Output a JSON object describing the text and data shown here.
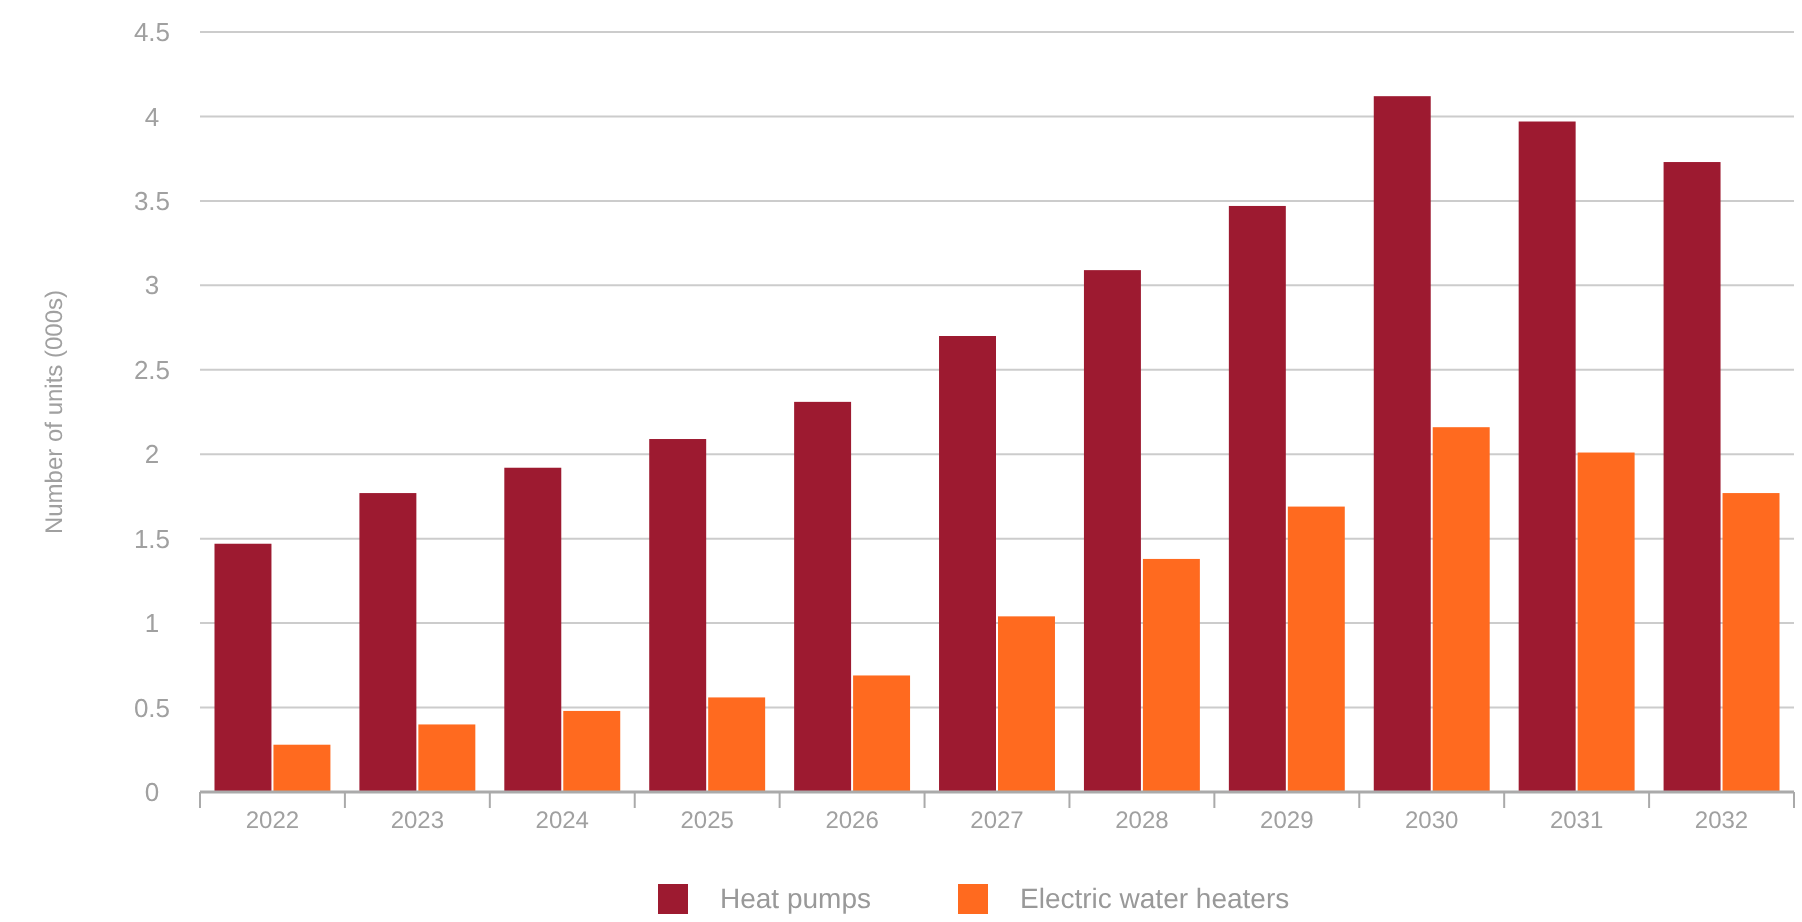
{
  "chart_data": {
    "type": "bar",
    "ylabel": "Number of units (000s)",
    "categories": [
      "2022",
      "2023",
      "2024",
      "2025",
      "2026",
      "2027",
      "2028",
      "2029",
      "2030",
      "2031",
      "2032"
    ],
    "series": [
      {
        "name": "Heat pumps",
        "color": "#9d1a30",
        "values": [
          1.47,
          1.77,
          1.92,
          2.09,
          2.31,
          2.7,
          3.09,
          3.47,
          4.12,
          3.97,
          3.73
        ]
      },
      {
        "name": "Electric water heaters",
        "color": "#ff6a1f",
        "values": [
          0.28,
          0.4,
          0.48,
          0.56,
          0.69,
          1.04,
          1.38,
          1.69,
          2.16,
          2.01,
          1.77
        ]
      }
    ],
    "ylim": [
      0,
      4.5
    ],
    "yticks": [
      0,
      {
        "value": 0.5,
        "label": "0.5"
      },
      1,
      {
        "value": 1.5,
        "label": "1.5"
      },
      2,
      {
        "value": 2.5,
        "label": "2.5"
      },
      3,
      {
        "value": 3.5,
        "label": "3.5"
      },
      4,
      {
        "value": 4.5,
        "label": "4.5"
      }
    ],
    "grid": "y",
    "legend": "bottom"
  }
}
